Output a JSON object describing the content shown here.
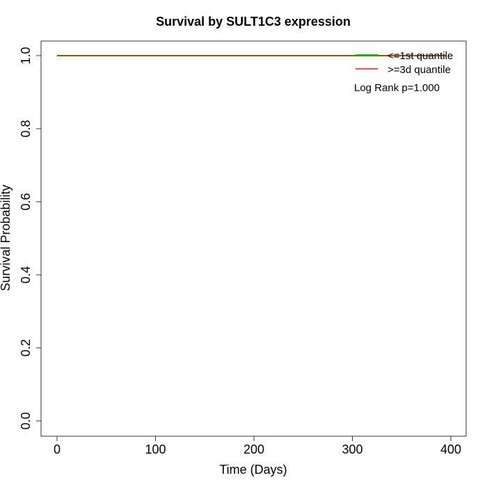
{
  "chart_data": {
    "type": "line",
    "title": "Survival by SULT1C3 expression",
    "xlabel": "Time (Days)",
    "ylabel": "Survival Probability",
    "xlim": [
      0,
      400
    ],
    "ylim": [
      0,
      1
    ],
    "xticks": [
      0,
      100,
      200,
      300,
      400
    ],
    "yticks": [
      0.0,
      0.2,
      0.4,
      0.6,
      0.8,
      1.0
    ],
    "xtick_labels": [
      "0",
      "100",
      "200",
      "300",
      "400"
    ],
    "ytick_labels": [
      "0.0",
      "0.2",
      "0.4",
      "0.6",
      "0.8",
      "1.0"
    ],
    "grid": false,
    "legend_position": "top-right",
    "series": [
      {
        "name": "<=1st quantile",
        "color": "#00cc00",
        "x": [
          0,
          395
        ],
        "y": [
          1.0,
          1.0
        ]
      },
      {
        "name": ">=3d quantile",
        "color": "#dd2200",
        "x": [
          0,
          395
        ],
        "y": [
          1.0,
          1.0
        ]
      }
    ],
    "annotations": [
      "Log Rank p=1.000"
    ]
  }
}
